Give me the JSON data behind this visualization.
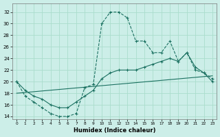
{
  "xlabel": "Humidex (Indice chaleur)",
  "bg_color": "#cceee8",
  "line_color": "#1a7060",
  "grid_color": "#aaddcc",
  "xlim": [
    -0.5,
    23.5
  ],
  "ylim": [
    13.5,
    33.5
  ],
  "xticks": [
    0,
    1,
    2,
    3,
    4,
    5,
    6,
    7,
    8,
    9,
    10,
    11,
    12,
    13,
    14,
    15,
    16,
    17,
    18,
    19,
    20,
    21,
    22,
    23
  ],
  "yticks": [
    14,
    16,
    18,
    20,
    22,
    24,
    26,
    28,
    30,
    32
  ],
  "line1_dashed": {
    "x": [
      0,
      1,
      2,
      3,
      4,
      5,
      6,
      7,
      8,
      9,
      10,
      11,
      12,
      13,
      14,
      15,
      16,
      17,
      18,
      19,
      20,
      21,
      22,
      23
    ],
    "y": [
      20,
      17.5,
      16.5,
      15.5,
      14.5,
      14,
      14,
      14.5,
      19,
      19.5,
      30,
      32,
      32,
      31,
      27,
      27,
      25,
      25,
      27,
      23.5,
      25,
      22,
      21.5,
      20.5
    ]
  },
  "line2_solid": {
    "x": [
      0,
      1,
      2,
      3,
      4,
      5,
      6,
      7,
      8,
      9,
      10,
      11,
      12,
      13,
      14,
      15,
      16,
      17,
      18,
      19,
      20,
      21,
      22,
      23
    ],
    "y": [
      20,
      18.5,
      17.5,
      17,
      16,
      15.5,
      15.5,
      16.5,
      17.5,
      18.5,
      20.5,
      21.5,
      22,
      22,
      22,
      22.5,
      23,
      23.5,
      24,
      23.5,
      25,
      22.5,
      21.5,
      20
    ]
  },
  "line3_solid": {
    "x": [
      0,
      23
    ],
    "y": [
      18,
      21
    ]
  }
}
